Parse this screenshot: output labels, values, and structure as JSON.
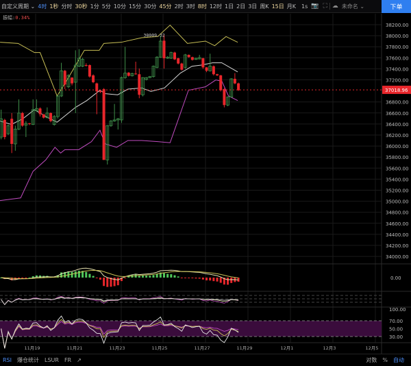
{
  "toolbar": {
    "custom_period": "自定义周期 ⌄",
    "intervals": [
      {
        "label": "4时",
        "state": "selected"
      },
      {
        "label": "1秒",
        "state": "favorite"
      },
      {
        "label": "分时",
        "state": ""
      },
      {
        "label": "30秒",
        "state": "favorite"
      },
      {
        "label": "1分",
        "state": ""
      },
      {
        "label": "5分",
        "state": ""
      },
      {
        "label": "10分",
        "state": ""
      },
      {
        "label": "15分",
        "state": ""
      },
      {
        "label": "30分",
        "state": ""
      },
      {
        "label": "45分",
        "state": "favorite"
      },
      {
        "label": "2时",
        "state": ""
      },
      {
        "label": "3时",
        "state": ""
      },
      {
        "label": "8时",
        "state": "favorite"
      },
      {
        "label": "12时",
        "state": ""
      },
      {
        "label": "1日",
        "state": ""
      },
      {
        "label": "2日",
        "state": ""
      },
      {
        "label": "3日",
        "state": ""
      },
      {
        "label": "周K",
        "state": ""
      },
      {
        "label": "15日",
        "state": "favorite"
      },
      {
        "label": "月K",
        "state": ""
      }
    ],
    "realtime": "1s",
    "camera_icon": "📷",
    "fullscreen_icon": "⛶",
    "layout_name": "未命名 ⌄",
    "cloud_icon": "☁",
    "order_button": "下单"
  },
  "amplitude": {
    "label": "振幅:",
    "value": "0.34%"
  },
  "colors": {
    "up": "#3f8f4a",
    "down": "#e8262b",
    "upper_band": "#c9c056",
    "mid_band": "#d8d8d8",
    "lower_band": "#c04cc0",
    "accent": "#2f7ff0",
    "rsi_band": "#3a0c3c"
  },
  "chart_data": {
    "type": "candlestick",
    "interval": "4时",
    "ylim": [
      33900,
      38300
    ],
    "y_ticks": [
      "38200.00",
      "38000.00",
      "37800.00",
      "37600.00",
      "37400.00",
      "37200.00",
      "36800.00",
      "36600.00",
      "36400.00",
      "36200.00",
      "36000.00",
      "35800.00",
      "35600.00",
      "35400.00",
      "35200.00",
      "35000.00",
      "34800.00",
      "34600.00",
      "34400.00",
      "34200.00",
      "34000.00"
    ],
    "x_ticks": [
      "11月19",
      "11月21",
      "11月23",
      "11月25",
      "11月27",
      "11月29",
      "12月1",
      "12月3",
      "12月5"
    ],
    "current_price": "37018.96",
    "max_label": "38009.32",
    "candles_ohlc": [
      [
        36163,
        36660,
        36122,
        36494
      ],
      [
        36474,
        36494,
        36122,
        36163
      ],
      [
        36225,
        36390,
        36200,
        36370
      ],
      [
        36494,
        36598,
        35873,
        36039
      ],
      [
        36039,
        36370,
        35915,
        36308
      ],
      [
        36308,
        36846,
        36290,
        36598
      ],
      [
        36598,
        36620,
        36350,
        36370
      ],
      [
        36378,
        36453,
        36163,
        36411
      ],
      [
        36411,
        36420,
        36380,
        36399
      ],
      [
        36391,
        36846,
        36380,
        36660
      ],
      [
        36639,
        36846,
        36620,
        36681
      ],
      [
        36681,
        36701,
        36536,
        36577
      ],
      [
        36577,
        36580,
        36500,
        36515
      ],
      [
        36515,
        36701,
        36500,
        36598
      ],
      [
        36598,
        36610,
        36430,
        36453
      ],
      [
        36391,
        36560,
        36370,
        36536
      ],
      [
        36536,
        36930,
        36500,
        36908
      ],
      [
        36908,
        37509,
        36890,
        37364
      ],
      [
        37364,
        37380,
        37032,
        37115
      ],
      [
        37074,
        37300,
        37050,
        37281
      ],
      [
        37240,
        37250,
        37100,
        37136
      ],
      [
        37157,
        37736,
        36598,
        37467
      ],
      [
        37447,
        37757,
        37430,
        37591
      ],
      [
        37447,
        37600,
        37430,
        37571
      ],
      [
        37467,
        37500,
        37440,
        37460
      ],
      [
        37467,
        37480,
        37240,
        37260
      ],
      [
        37281,
        37300,
        37140,
        37157
      ],
      [
        37136,
        37150,
        36577,
        36991
      ],
      [
        37000,
        37010,
        36960,
        36980
      ],
      [
        37032,
        37050,
        35749,
        35749
      ],
      [
        35749,
        36380,
        35666,
        36370
      ],
      [
        36370,
        36470,
        36350,
        36453
      ],
      [
        36453,
        36763,
        36440,
        36474
      ],
      [
        36474,
        36510,
        36300,
        36494
      ],
      [
        36474,
        37260,
        36420,
        37240
      ],
      [
        37240,
        37798,
        37220,
        37322
      ],
      [
        37331,
        37340,
        37260,
        37273
      ],
      [
        37273,
        37330,
        37260,
        37314
      ],
      [
        37314,
        37529,
        37290,
        37302
      ],
      [
        37302,
        37405,
        36867,
        36929
      ],
      [
        36929,
        37250,
        36900,
        37240
      ],
      [
        37206,
        37250,
        37190,
        37240
      ],
      [
        37240,
        37270,
        37230,
        37260
      ],
      [
        37260,
        37460,
        37240,
        37447
      ],
      [
        37426,
        37630,
        37410,
        37612
      ],
      [
        37612,
        38005,
        37600,
        37902
      ],
      [
        37910,
        38009,
        37405,
        37591
      ],
      [
        37591,
        37630,
        37580,
        37612
      ],
      [
        37591,
        37710,
        37580,
        37695
      ],
      [
        37695,
        37710,
        37560,
        37571
      ],
      [
        37591,
        37600,
        37480,
        37496
      ],
      [
        37496,
        37510,
        37370,
        37384
      ],
      [
        37426,
        37670,
        37400,
        37653
      ],
      [
        37653,
        37660,
        37600,
        37612
      ],
      [
        37612,
        37620,
        37550,
        37562
      ],
      [
        37571,
        37600,
        37560,
        37591
      ],
      [
        37579,
        37653,
        37570,
        37604
      ],
      [
        37591,
        37600,
        37400,
        37426
      ],
      [
        37426,
        37430,
        37340,
        37364
      ],
      [
        37364,
        37674,
        37350,
        37447
      ],
      [
        37447,
        37460,
        37280,
        37302
      ],
      [
        37302,
        37310,
        37270,
        37281
      ],
      [
        37281,
        37290,
        36990,
        37012
      ],
      [
        37032,
        37050,
        36701,
        36743
      ],
      [
        36743,
        36900,
        36722,
        36888
      ],
      [
        36888,
        37230,
        36880,
        37219
      ],
      [
        37219,
        37322,
        37120,
        37136
      ],
      [
        37136,
        37150,
        37000,
        37012
      ]
    ],
    "bollinger": {
      "upper": [
        [
          -0.3,
          37881
        ],
        [
          4.8,
          37860
        ],
        [
          9.4,
          37695
        ],
        [
          11,
          37695
        ],
        [
          15.8,
          36908
        ],
        [
          19,
          37240
        ],
        [
          23.5,
          37736
        ],
        [
          27.7,
          37736
        ],
        [
          29,
          37860
        ],
        [
          33.9,
          37881
        ],
        [
          39.7,
          37964
        ],
        [
          44.2,
          37985
        ],
        [
          47.7,
          38192
        ],
        [
          52.6,
          37860
        ],
        [
          57.7,
          37902
        ],
        [
          60.3,
          37819
        ],
        [
          63.5,
          37985
        ],
        [
          66.8,
          37881
        ]
      ],
      "mid": [
        [
          -0.3,
          36453
        ],
        [
          2.9,
          36391
        ],
        [
          6.1,
          36494
        ],
        [
          9.4,
          36660
        ],
        [
          12.6,
          36536
        ],
        [
          15.8,
          36432
        ],
        [
          21,
          36701
        ],
        [
          24.2,
          36825
        ],
        [
          27.9,
          37012
        ],
        [
          29.4,
          36950
        ],
        [
          32.9,
          36929
        ],
        [
          35.8,
          37032
        ],
        [
          39.7,
          37053
        ],
        [
          42.3,
          36991
        ],
        [
          46.1,
          37053
        ],
        [
          50.6,
          37322
        ],
        [
          53.9,
          37447
        ],
        [
          56.5,
          37467
        ],
        [
          59.7,
          37509
        ],
        [
          62.3,
          37509
        ],
        [
          66.8,
          37343
        ]
      ],
      "lower": [
        [
          -0.5,
          35010
        ],
        [
          5.5,
          35060
        ],
        [
          9,
          35542
        ],
        [
          12.6,
          35749
        ],
        [
          15.2,
          35977
        ],
        [
          16.8,
          35873
        ],
        [
          18,
          35935
        ],
        [
          21.9,
          35935
        ],
        [
          25.5,
          36080
        ],
        [
          27.9,
          36287
        ],
        [
          29.4,
          36039
        ],
        [
          32.6,
          35977
        ],
        [
          35.8,
          36101
        ],
        [
          39.7,
          36101
        ],
        [
          44.2,
          36080
        ],
        [
          47.7,
          36060
        ],
        [
          49.4,
          36370
        ],
        [
          52.9,
          37012
        ],
        [
          57.7,
          37074
        ],
        [
          60.6,
          37198
        ],
        [
          62.3,
          37177
        ],
        [
          64.2,
          36908
        ],
        [
          66.8,
          36825
        ]
      ]
    },
    "macd_axis": "0.00",
    "rsi_axis": [
      "100.00",
      "70.00",
      "50.00",
      "30.00"
    ]
  },
  "bottombar": {
    "rsi": "RSI",
    "liquidation": "爆仓统计",
    "lsur": "LSUR",
    "fr": "FR",
    "external_icon": "↗",
    "log": "对数",
    "percent": "%",
    "auto": "自动"
  }
}
